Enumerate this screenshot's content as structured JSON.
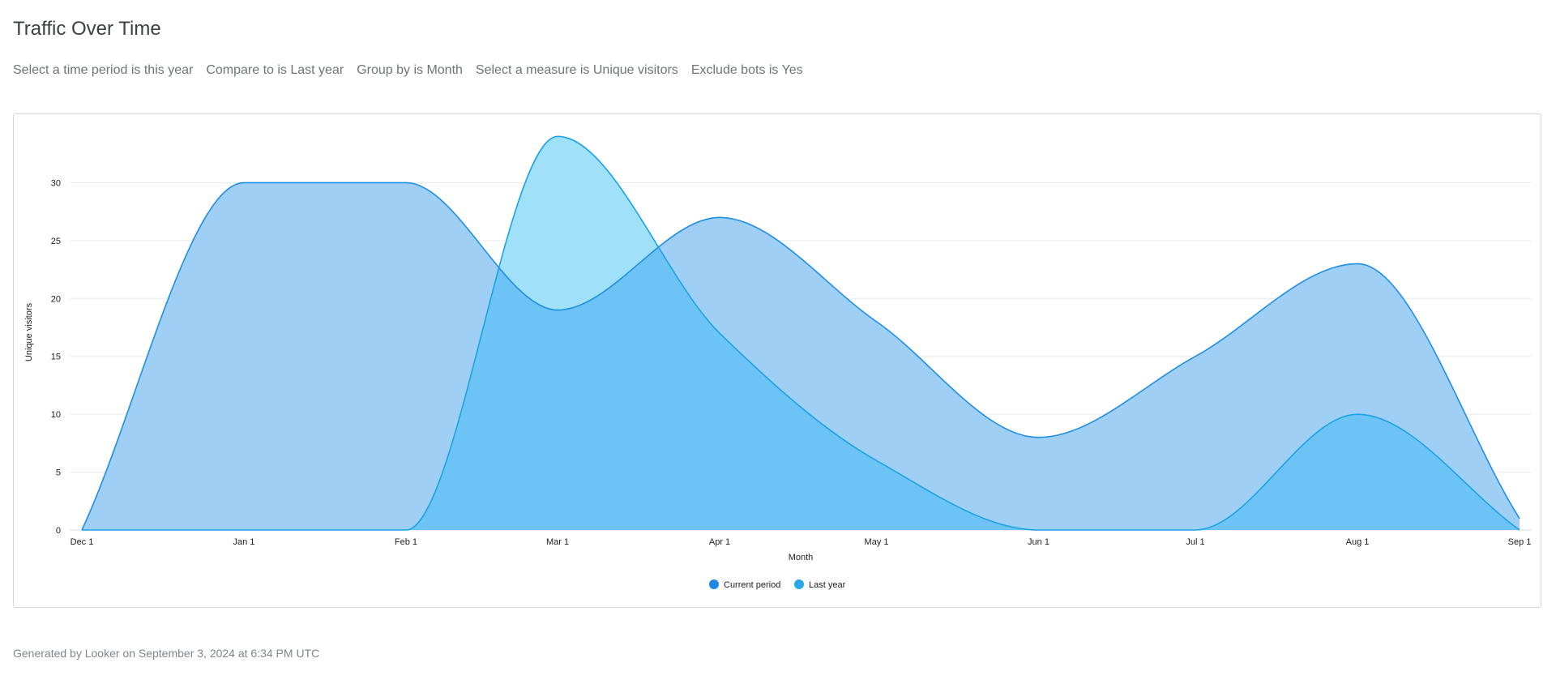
{
  "page": {
    "title": "Traffic Over Time",
    "footer": "Generated by Looker on September 3, 2024 at 6:34 PM UTC"
  },
  "filters": [
    "Select a time period is this year",
    "Compare to is Last year",
    "Group by is Month",
    "Select a measure is Unique visitors",
    "Exclude bots is Yes"
  ],
  "colors": {
    "current_line": "#1e8fe3",
    "current_fill": "#9fcff5",
    "last_line": "#1aa3e6",
    "last_fill": "#8fdcf8",
    "overlap_fill": "#6ec3f6",
    "grid": "#e8eaed",
    "axis_text": "#202124",
    "legend_current": "#1e88e5",
    "legend_last": "#29a8e6"
  },
  "chart_data": {
    "type": "area",
    "title": "Traffic Over Time",
    "xlabel": "Month",
    "ylabel": "Unique visitors",
    "ylim": [
      0,
      35
    ],
    "yticks": [
      0,
      5,
      10,
      15,
      20,
      25,
      30
    ],
    "grid": true,
    "legend_position": "bottom-center",
    "categories": [
      "Dec 1",
      "Jan 1",
      "Feb 1",
      "Mar 1",
      "Apr 1",
      "May 1",
      "Jun 1",
      "Jul 1",
      "Aug 1",
      "Sep 1"
    ],
    "x_days": [
      0,
      31,
      62,
      91,
      122,
      152,
      183,
      213,
      244,
      275
    ],
    "series": [
      {
        "name": "Current period",
        "x_days": [
          0,
          31,
          62,
          91,
          122,
          152,
          183,
          213,
          244,
          275
        ],
        "values": [
          0,
          30,
          30,
          19,
          27,
          18,
          8,
          15,
          23,
          1
        ]
      },
      {
        "name": "Last year",
        "x_days": [
          0,
          31,
          62,
          91,
          122,
          152,
          183,
          213,
          244,
          275
        ],
        "values": [
          0,
          0,
          0,
          34,
          17,
          6,
          0,
          0,
          10,
          0
        ]
      }
    ]
  }
}
